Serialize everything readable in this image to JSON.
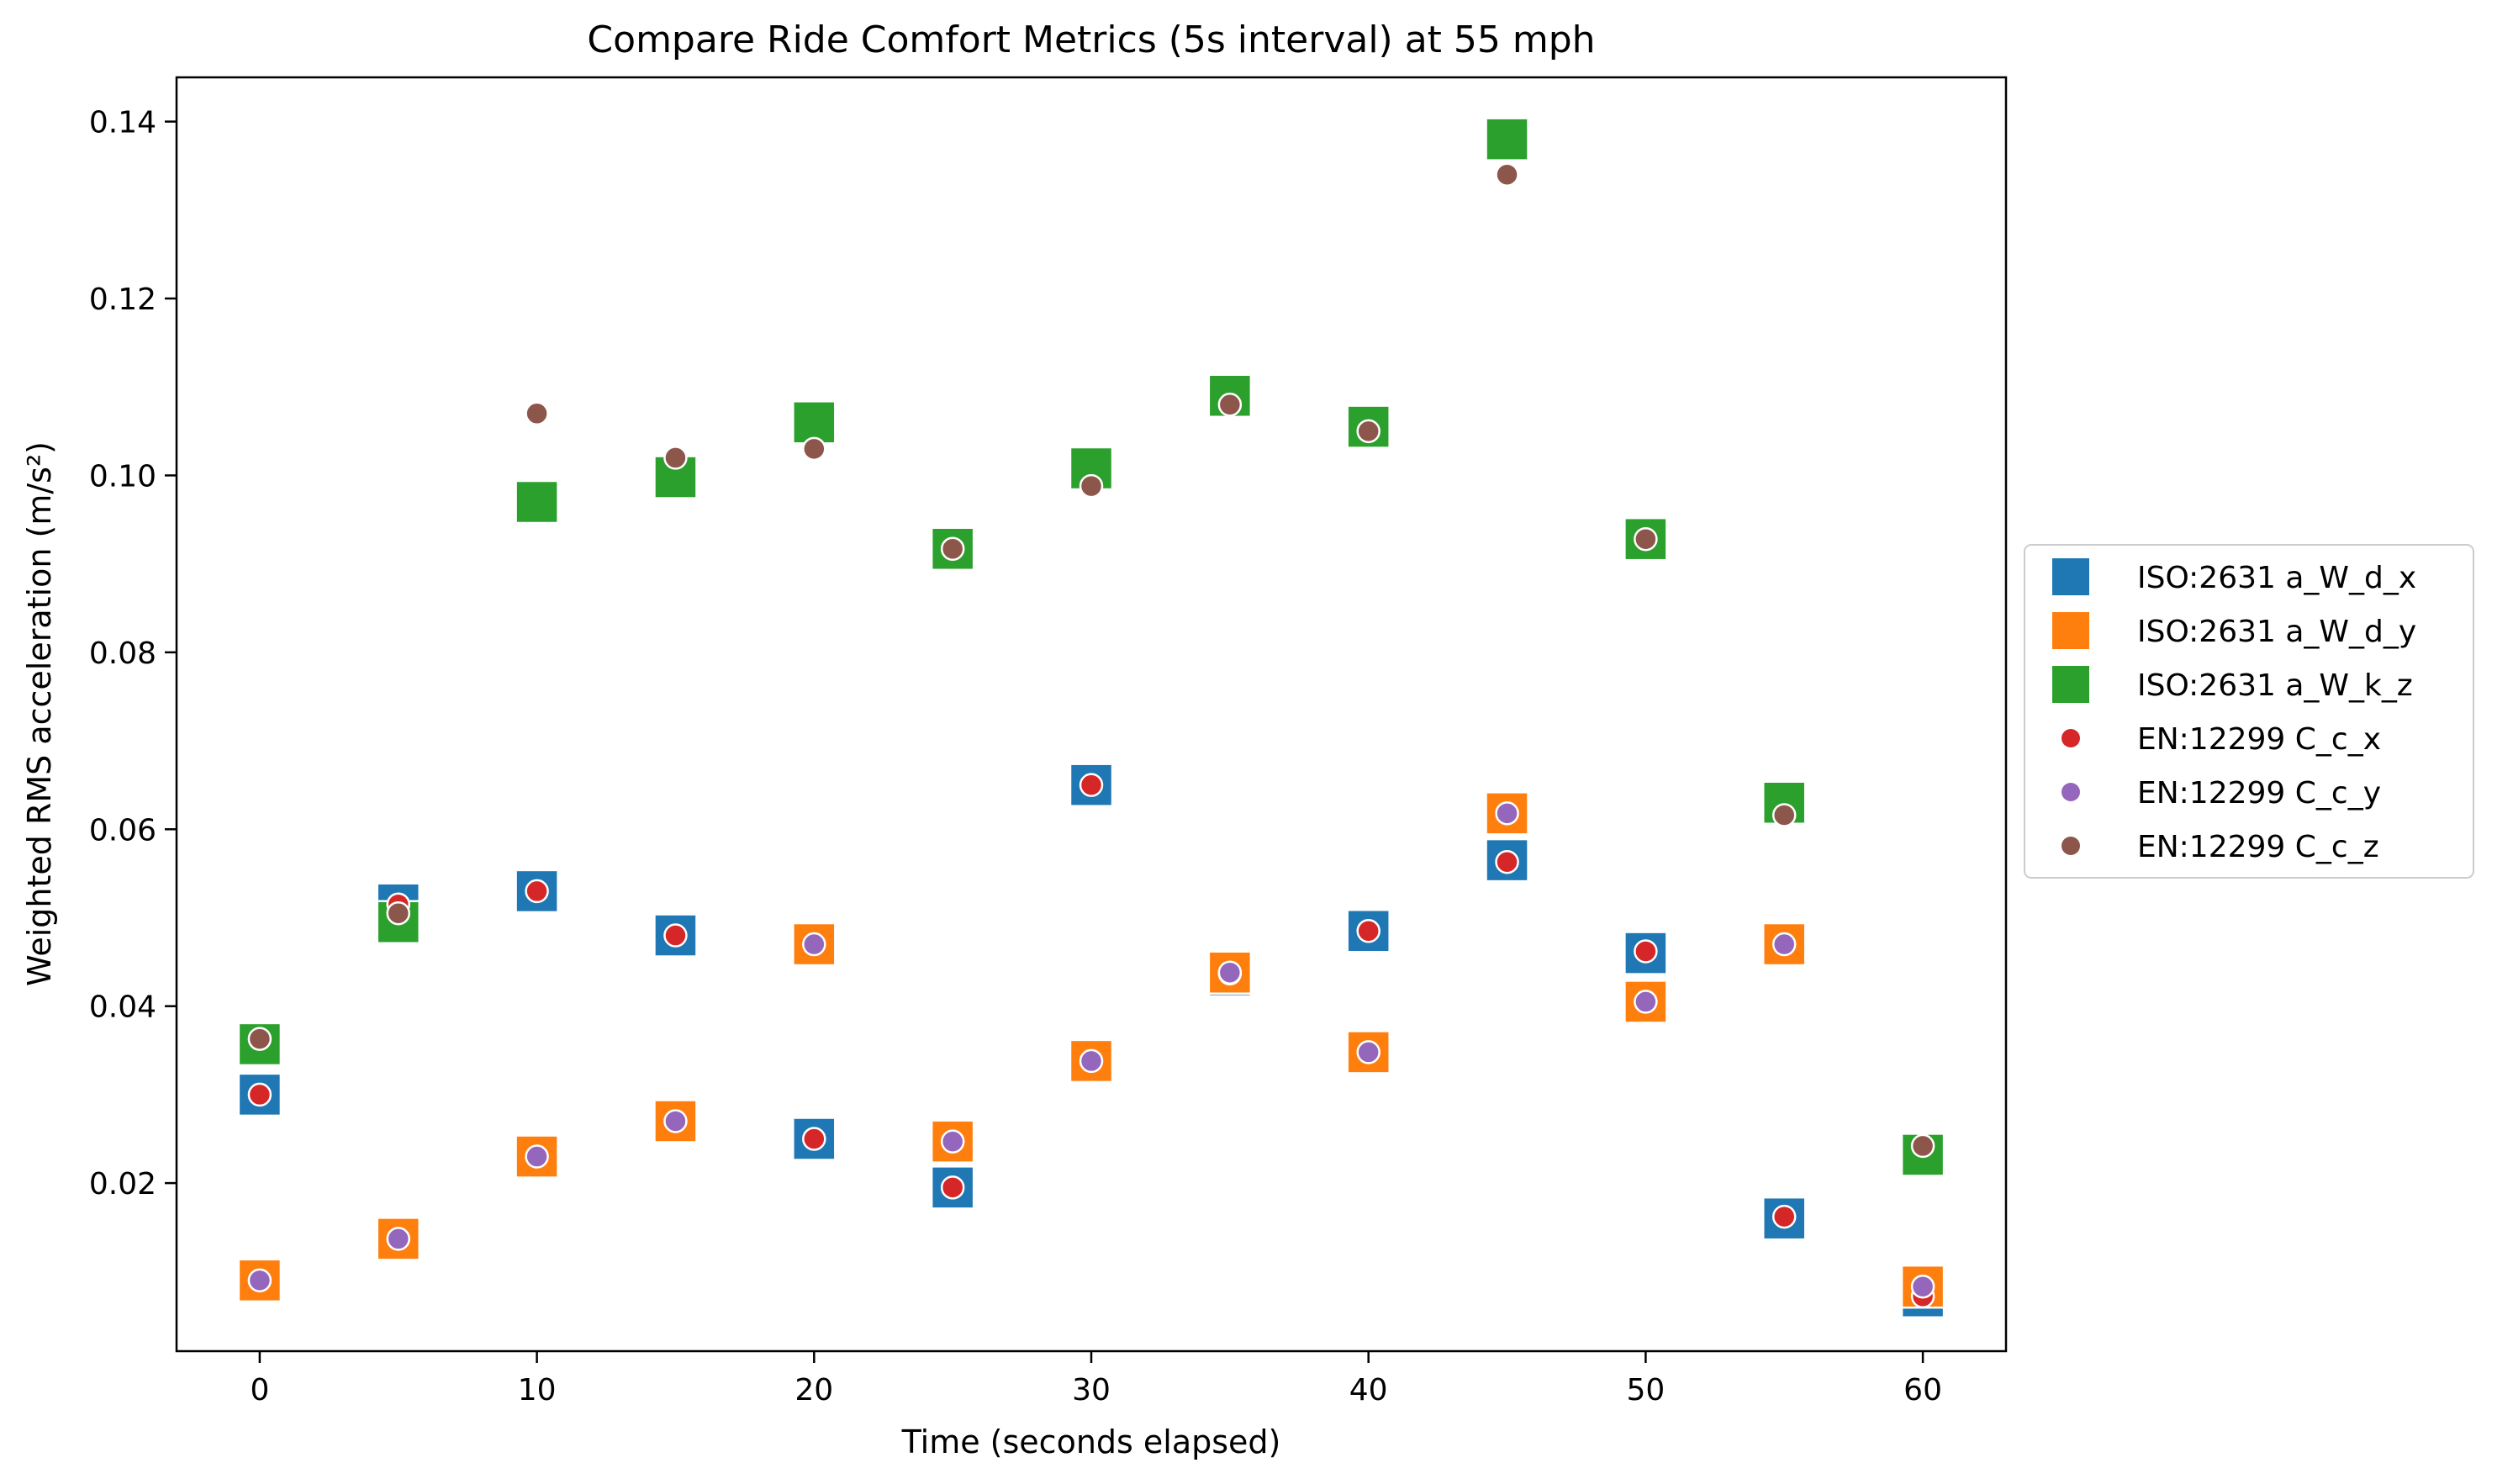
{
  "chart_data": {
    "type": "scatter",
    "title": "Compare Ride Comfort Metrics (5s interval) at 55 mph",
    "xlabel": "Time (seconds elapsed)",
    "ylabel": "Weighted RMS acceleration (m/s²)",
    "xlim": [
      -3,
      63
    ],
    "ylim": [
      0.001,
      0.145
    ],
    "xticks": [
      0,
      10,
      20,
      30,
      40,
      50,
      60
    ],
    "yticks": [
      0.02,
      0.04,
      0.06,
      0.08,
      0.1,
      0.12,
      0.14
    ],
    "ytick_labels": [
      "0.02",
      "0.04",
      "0.06",
      "0.08",
      "0.10",
      "0.12",
      "0.14"
    ],
    "grid": false,
    "legend_position": "right, outside plot",
    "x": [
      0,
      5,
      10,
      15,
      20,
      25,
      30,
      35,
      40,
      45,
      50,
      55,
      60
    ],
    "series": [
      {
        "name": "ISO:2631 a_W_d_x",
        "marker": "square",
        "color": "#1f77b4",
        "values": [
          0.03,
          0.0515,
          0.053,
          0.048,
          0.025,
          0.0195,
          0.065,
          0.0435,
          0.0485,
          0.0565,
          0.046,
          0.016,
          0.0072
        ]
      },
      {
        "name": "ISO:2631 a_W_d_y",
        "marker": "square",
        "color": "#ff7f0e",
        "values": [
          0.009,
          0.0137,
          0.023,
          0.027,
          0.047,
          0.0247,
          0.0338,
          0.0438,
          0.0348,
          0.0618,
          0.0405,
          0.047,
          0.0083
        ]
      },
      {
        "name": "ISO:2631 a_W_k_z",
        "marker": "square",
        "color": "#2ca02c",
        "values": [
          0.0357,
          0.0495,
          0.097,
          0.0998,
          0.106,
          0.0917,
          0.1008,
          0.109,
          0.1055,
          0.138,
          0.0928,
          0.063,
          0.0232
        ]
      },
      {
        "name": "EN:12299 C_c_x",
        "marker": "circle",
        "color": "#d62728",
        "values": [
          0.03,
          0.0515,
          0.053,
          0.048,
          0.025,
          0.0195,
          0.065,
          0.0437,
          0.0485,
          0.0563,
          0.0462,
          0.0162,
          0.0072
        ]
      },
      {
        "name": "EN:12299 C_c_y",
        "marker": "circle",
        "color": "#9467bd",
        "values": [
          0.009,
          0.0137,
          0.023,
          0.027,
          0.047,
          0.0247,
          0.0338,
          0.0438,
          0.0348,
          0.0618,
          0.0405,
          0.047,
          0.0083
        ]
      },
      {
        "name": "EN:12299 C_c_z",
        "marker": "circle",
        "color": "#8c564b",
        "values": [
          0.0363,
          0.0505,
          0.107,
          0.102,
          0.103,
          0.0917,
          0.0988,
          0.108,
          0.105,
          0.134,
          0.0928,
          0.0616,
          0.0242
        ]
      }
    ]
  }
}
